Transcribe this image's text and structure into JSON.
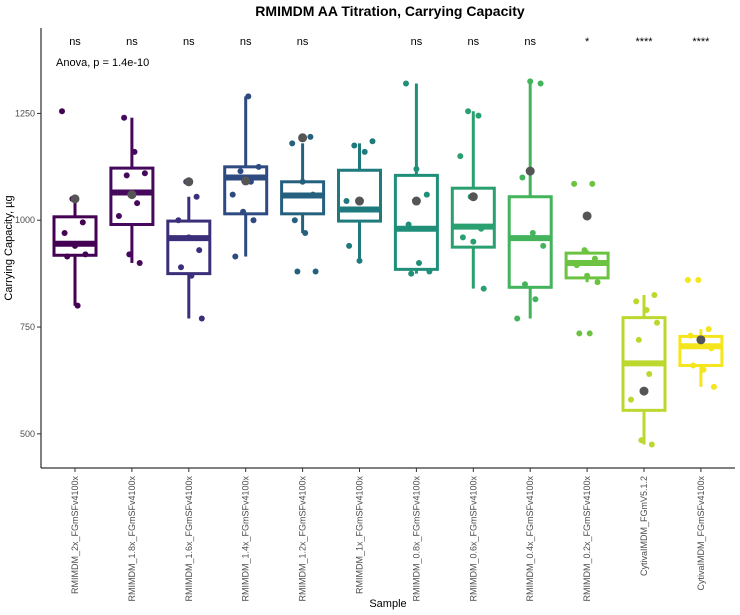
{
  "chart_data": {
    "type": "box",
    "title": "RMIMDM AA Titration, Carrying Capacity",
    "xlabel": "Sample",
    "ylabel": "Carrying Capacity, µg",
    "ylim": [
      420,
      1450
    ],
    "yticks": [
      500,
      750,
      1000,
      1250
    ],
    "ytick_labels": [
      "500",
      "750",
      "1000",
      "1250"
    ],
    "annotation": "Anova, p = 1.4e-10",
    "grid": false,
    "legend": "none",
    "categories": [
      "RMIMDM_2x_FGmSFv4100x",
      "RMIMDM_1.8x_FGmSFv4100x",
      "RMIMDM_1.6x_FGmSFv4100x",
      "RMIMDM_1.4x_FGmSFv4100x",
      "RMIMDM_1.2x_FGmSFv4100x",
      "RMIMDM_1x_FGmSFv4100x",
      "RMIMDM_0.8x_FGmSFv4100x",
      "RMIMDM_0.6x_FGmSFv4100x",
      "RMIMDM_0.4x_FGmSFv4100x",
      "RMIMDM_0.2x_FGmSFv4100x",
      "CytivaIMDM_FGmV5.1.2",
      "CytivaIMDM_FGmSFv4100x"
    ],
    "colors": [
      "#440154",
      "#46085c",
      "#3b2f7a",
      "#2d4a81",
      "#25617f",
      "#1f7a7d",
      "#1f8f79",
      "#2a9f6f",
      "#43b35c",
      "#6cc342",
      "#bcd82e",
      "#f5e51c"
    ],
    "significance": [
      "ns",
      "ns",
      "ns",
      "ns",
      "ns",
      "",
      "ns",
      "ns",
      "ns",
      "*",
      "****",
      "****"
    ],
    "boxes": [
      {
        "min": 800,
        "q1": 918,
        "median": 945,
        "q3": 1008,
        "max": 1050,
        "mean": 1050
      },
      {
        "min": 900,
        "q1": 990,
        "median": 1065,
        "q3": 1122,
        "max": 1240,
        "mean": 1060
      },
      {
        "min": 770,
        "q1": 875,
        "median": 958,
        "q3": 998,
        "max": 1055,
        "mean": 1090
      },
      {
        "min": 915,
        "q1": 1015,
        "median": 1100,
        "q3": 1125,
        "max": 1290,
        "mean": 1092
      },
      {
        "min": 970,
        "q1": 1015,
        "median": 1058,
        "q3": 1090,
        "max": 1180,
        "mean": 1193
      },
      {
        "min": 905,
        "q1": 998,
        "median": 1025,
        "q3": 1117,
        "max": 1180,
        "mean": 1045
      },
      {
        "min": 875,
        "q1": 885,
        "median": 980,
        "q3": 1105,
        "max": 1320,
        "mean": 1045
      },
      {
        "min": 840,
        "q1": 937,
        "median": 985,
        "q3": 1075,
        "max": 1255,
        "mean": 1055
      },
      {
        "min": 770,
        "q1": 843,
        "median": 958,
        "q3": 1055,
        "max": 1325,
        "mean": 1115
      },
      {
        "min": 855,
        "q1": 865,
        "median": 900,
        "q3": 923,
        "max": 930,
        "mean": 1010
      },
      {
        "min": 475,
        "q1": 555,
        "median": 665,
        "q3": 772,
        "max": 825,
        "mean": 600
      },
      {
        "min": 610,
        "q1": 660,
        "median": 705,
        "q3": 728,
        "max": 745,
        "mean": 720
      }
    ],
    "points": [
      [
        1255,
        1050,
        995,
        970,
        940,
        920,
        915,
        800
      ],
      [
        1240,
        1160,
        1110,
        1105,
        1040,
        1010,
        920,
        900
      ],
      [
        1090,
        1055,
        1000,
        960,
        930,
        890,
        870,
        770
      ],
      [
        1290,
        1125,
        1115,
        1090,
        1060,
        1020,
        1000,
        915
      ],
      [
        1195,
        1180,
        1090,
        1060,
        1000,
        970,
        880,
        880
      ],
      [
        1185,
        1175,
        1160,
        1045,
        1025,
        1025,
        940,
        905
      ],
      [
        1320,
        1120,
        1060,
        990,
        900,
        880,
        875
      ],
      [
        1255,
        1245,
        1150,
        1055,
        980,
        960,
        950,
        840
      ],
      [
        1325,
        1320,
        1100,
        970,
        940,
        850,
        815,
        770
      ],
      [
        1085,
        1085,
        930,
        910,
        895,
        870,
        855,
        735,
        735
      ],
      [
        825,
        810,
        790,
        760,
        720,
        640,
        580,
        485,
        475
      ],
      [
        860,
        860,
        745,
        730,
        710,
        700,
        660,
        650,
        610
      ]
    ]
  }
}
